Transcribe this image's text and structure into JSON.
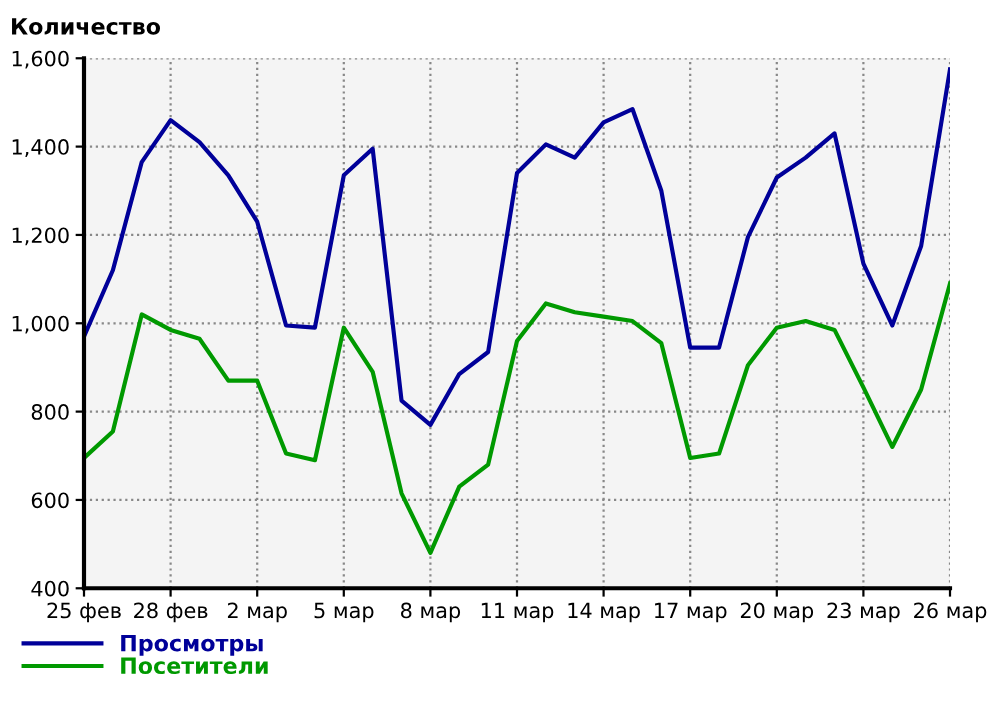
{
  "chart_data": {
    "type": "line",
    "ylabel": "Количество",
    "categories": [
      "25 фев",
      null,
      null,
      "28 фев",
      null,
      null,
      "2 мар",
      null,
      null,
      "5 мар",
      null,
      null,
      "8 мар",
      null,
      null,
      "11 мар",
      null,
      null,
      "14 мар",
      null,
      null,
      "17 мар",
      null,
      null,
      "20 мар",
      null,
      null,
      "23 мар",
      null,
      null,
      "26 мар"
    ],
    "series": [
      {
        "name": "Просмотры",
        "color": "#000099",
        "values": [
          970,
          1120,
          1365,
          1460,
          1410,
          1335,
          1230,
          995,
          990,
          1335,
          1395,
          825,
          770,
          885,
          935,
          1340,
          1405,
          1375,
          1455,
          1485,
          1300,
          945,
          945,
          1195,
          1330,
          1375,
          1430,
          1135,
          995,
          1175,
          1575
        ]
      },
      {
        "name": "Посетители",
        "color": "#009900",
        "values": [
          695,
          755,
          1020,
          985,
          965,
          870,
          870,
          705,
          690,
          990,
          890,
          615,
          480,
          630,
          680,
          960,
          1045,
          1025,
          1015,
          1005,
          955,
          695,
          705,
          905,
          990,
          1005,
          985,
          855,
          720,
          850,
          1090
        ]
      }
    ],
    "ylim": [
      400,
      1600
    ],
    "yticks": [
      400,
      600,
      800,
      {
        "value": 1000,
        "label": "1,000"
      },
      {
        "value": 1200,
        "label": "1,200"
      },
      {
        "value": 1400,
        "label": "1,400"
      },
      {
        "value": 1600,
        "label": "1,600"
      }
    ],
    "grid": true,
    "legend": "bottom",
    "marker": "none",
    "line_style": "solid"
  }
}
